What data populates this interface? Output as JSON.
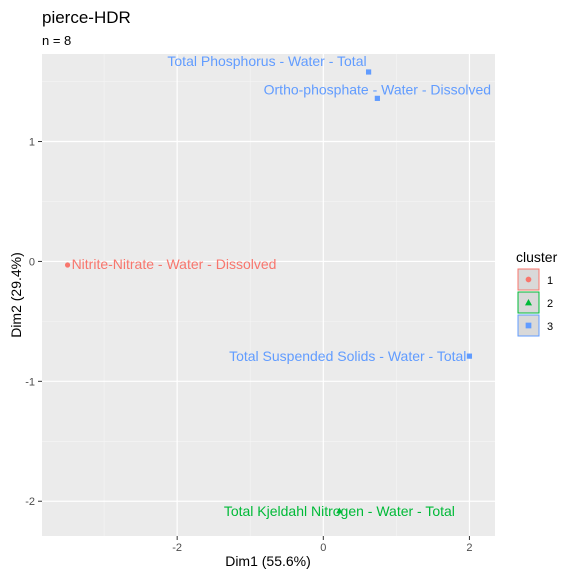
{
  "chart_data": {
    "type": "scatter",
    "title": "pierce-HDR",
    "subtitle": "n = 8",
    "xlabel": "Dim1 (55.6%)",
    "ylabel": "Dim2 (29.4%)",
    "xlim": [
      -3.85,
      2.35
    ],
    "ylim": [
      -2.29,
      1.73
    ],
    "x_ticks": [
      -2,
      0,
      2
    ],
    "y_ticks": [
      -2,
      -1,
      0,
      1
    ],
    "grid": true,
    "legend": {
      "title": "cluster",
      "position": "right",
      "entries": [
        {
          "label": "1",
          "color": "#F8766D",
          "symbol": "circle"
        },
        {
          "label": "2",
          "color": "#00BA38",
          "symbol": "triangle"
        },
        {
          "label": "3",
          "color": "#619CFF",
          "symbol": "square"
        }
      ]
    },
    "points": [
      {
        "label": "Total Phosphorus - Water - Total",
        "x": 0.62,
        "y": 1.58,
        "cluster": "3"
      },
      {
        "label": "Ortho-phosphate - Water - Dissolved",
        "x": 0.74,
        "y": 1.36,
        "cluster": "3"
      },
      {
        "label": "Nitrite-Nitrate - Water - Dissolved",
        "x": -3.5,
        "y": -0.03,
        "cluster": "1"
      },
      {
        "label": "Total Suspended Solids - Water - Total",
        "x": 2.0,
        "y": -0.79,
        "cluster": "3"
      },
      {
        "label": "Total Kjeldahl Nitrogen - Water - Total",
        "x": 0.22,
        "y": -2.08,
        "cluster": "2"
      }
    ]
  }
}
